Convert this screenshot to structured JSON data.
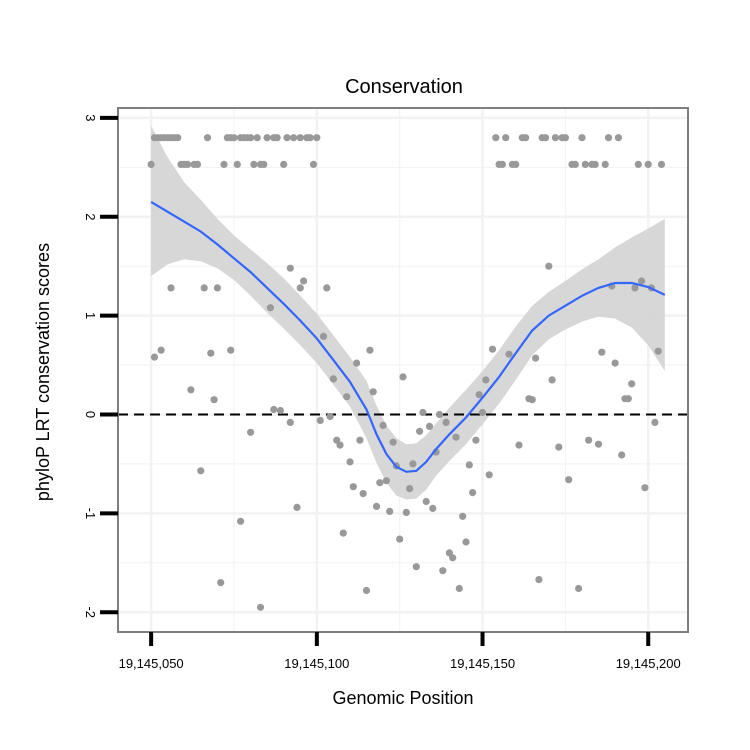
{
  "chart_data": {
    "type": "scatter",
    "title": "Conservation",
    "xlabel": "Genomic Position",
    "ylabel": "phyloP LRT conservation scores",
    "xlim": [
      19145040,
      19145212
    ],
    "ylim": [
      -2.2,
      3.1
    ],
    "x_ticks": [
      19145050,
      19145100,
      19145150,
      19145200
    ],
    "x_tick_labels": [
      "19,145,050",
      "19,145,100",
      "19,145,150",
      "19,145,200"
    ],
    "y_ticks": [
      -2,
      -1,
      0,
      1,
      2,
      3
    ],
    "y_tick_labels": [
      "-2",
      "-1",
      "0",
      "1",
      "2",
      "3"
    ],
    "grid": true,
    "reference_line": {
      "y": 0,
      "style": "dashed"
    },
    "colors": {
      "points": "#999999",
      "smooth": "#3366ff",
      "band": "#d3d3d3",
      "panel_border": "#7f7f7f",
      "grid": "#f2f2f2",
      "refline": "#000000"
    },
    "series": [
      {
        "kind": "points",
        "points": [
          [
            19145050,
            2.53
          ],
          [
            19145051,
            0.58
          ],
          [
            19145051,
            2.8
          ],
          [
            19145052,
            2.8
          ],
          [
            19145053,
            0.65
          ],
          [
            19145053,
            2.8
          ],
          [
            19145054,
            2.8
          ],
          [
            19145055,
            2.8
          ],
          [
            19145056,
            1.28
          ],
          [
            19145056,
            2.8
          ],
          [
            19145057,
            2.8
          ],
          [
            19145058,
            2.8
          ],
          [
            19145059,
            2.53
          ],
          [
            19145060,
            2.53
          ],
          [
            19145061,
            2.53
          ],
          [
            19145062,
            0.25
          ],
          [
            19145063,
            2.53
          ],
          [
            19145064,
            2.53
          ],
          [
            19145065,
            -0.57
          ],
          [
            19145066,
            1.28
          ],
          [
            19145067,
            2.8
          ],
          [
            19145068,
            0.62
          ],
          [
            19145069,
            0.15
          ],
          [
            19145070,
            1.28
          ],
          [
            19145071,
            -1.7
          ],
          [
            19145072,
            2.53
          ],
          [
            19145073,
            2.8
          ],
          [
            19145074,
            0.65
          ],
          [
            19145074,
            2.8
          ],
          [
            19145075,
            2.8
          ],
          [
            19145076,
            2.53
          ],
          [
            19145077,
            -1.08
          ],
          [
            19145077,
            2.8
          ],
          [
            19145078,
            2.8
          ],
          [
            19145079,
            2.8
          ],
          [
            19145080,
            -0.18
          ],
          [
            19145080,
            2.8
          ],
          [
            19145081,
            2.53
          ],
          [
            19145082,
            2.8
          ],
          [
            19145083,
            -1.95
          ],
          [
            19145083,
            2.53
          ],
          [
            19145084,
            2.53
          ],
          [
            19145085,
            2.8
          ],
          [
            19145086,
            1.08
          ],
          [
            19145087,
            0.05
          ],
          [
            19145087,
            2.8
          ],
          [
            19145088,
            2.8
          ],
          [
            19145089,
            0.04
          ],
          [
            19145090,
            2.53
          ],
          [
            19145091,
            2.8
          ],
          [
            19145092,
            -0.08
          ],
          [
            19145092,
            1.48
          ],
          [
            19145093,
            2.8
          ],
          [
            19145094,
            -0.94
          ],
          [
            19145095,
            1.28
          ],
          [
            19145095,
            2.8
          ],
          [
            19145096,
            1.35
          ],
          [
            19145097,
            2.8
          ],
          [
            19145098,
            2.8
          ],
          [
            19145099,
            2.53
          ],
          [
            19145100,
            2.8
          ],
          [
            19145101,
            -0.06
          ],
          [
            19145102,
            0.79
          ],
          [
            19145103,
            1.28
          ],
          [
            19145104,
            -0.02
          ],
          [
            19145105,
            0.36
          ],
          [
            19145106,
            -0.26
          ],
          [
            19145107,
            -0.31
          ],
          [
            19145108,
            -1.2
          ],
          [
            19145109,
            0.18
          ],
          [
            19145110,
            -0.48
          ],
          [
            19145111,
            -0.73
          ],
          [
            19145112,
            0.52
          ],
          [
            19145113,
            -0.26
          ],
          [
            19145114,
            -0.8
          ],
          [
            19145115,
            -1.78
          ],
          [
            19145116,
            0.65
          ],
          [
            19145117,
            0.23
          ],
          [
            19145118,
            -0.93
          ],
          [
            19145119,
            -0.69
          ],
          [
            19145120,
            -0.11
          ],
          [
            19145121,
            -0.67
          ],
          [
            19145122,
            -0.98
          ],
          [
            19145123,
            -0.28
          ],
          [
            19145124,
            -0.52
          ],
          [
            19145125,
            -1.26
          ],
          [
            19145126,
            0.38
          ],
          [
            19145127,
            -0.99
          ],
          [
            19145128,
            -0.75
          ],
          [
            19145129,
            -0.5
          ],
          [
            19145130,
            -1.54
          ],
          [
            19145131,
            -0.17
          ],
          [
            19145132,
            0.02
          ],
          [
            19145133,
            -0.88
          ],
          [
            19145134,
            -0.12
          ],
          [
            19145135,
            -0.95
          ],
          [
            19145136,
            -0.38
          ],
          [
            19145137,
            0.0
          ],
          [
            19145138,
            -1.58
          ],
          [
            19145139,
            -0.08
          ],
          [
            19145140,
            -1.4
          ],
          [
            19145141,
            -1.45
          ],
          [
            19145142,
            -0.23
          ],
          [
            19145143,
            -1.76
          ],
          [
            19145144,
            -1.03
          ],
          [
            19145145,
            -1.29
          ],
          [
            19145146,
            -0.51
          ],
          [
            19145147,
            -0.79
          ],
          [
            19145148,
            -0.26
          ],
          [
            19145149,
            0.2
          ],
          [
            19145150,
            0.02
          ],
          [
            19145151,
            0.35
          ],
          [
            19145152,
            -0.61
          ],
          [
            19145153,
            0.66
          ],
          [
            19145154,
            2.8
          ],
          [
            19145155,
            2.53
          ],
          [
            19145156,
            2.53
          ],
          [
            19145157,
            2.8
          ],
          [
            19145158,
            0.61
          ],
          [
            19145159,
            2.53
          ],
          [
            19145160,
            2.53
          ],
          [
            19145161,
            -0.31
          ],
          [
            19145162,
            2.8
          ],
          [
            19145163,
            2.8
          ],
          [
            19145164,
            0.16
          ],
          [
            19145165,
            0.15
          ],
          [
            19145166,
            0.57
          ],
          [
            19145167,
            -1.67
          ],
          [
            19145168,
            2.8
          ],
          [
            19145169,
            2.8
          ],
          [
            19145170,
            1.5
          ],
          [
            19145171,
            0.35
          ],
          [
            19145172,
            2.8
          ],
          [
            19145173,
            -0.33
          ],
          [
            19145174,
            2.8
          ],
          [
            19145175,
            2.8
          ],
          [
            19145176,
            -0.66
          ],
          [
            19145177,
            2.53
          ],
          [
            19145178,
            2.53
          ],
          [
            19145179,
            -1.76
          ],
          [
            19145180,
            2.8
          ],
          [
            19145181,
            2.53
          ],
          [
            19145182,
            -0.26
          ],
          [
            19145183,
            2.53
          ],
          [
            19145184,
            2.53
          ],
          [
            19145185,
            -0.3
          ],
          [
            19145186,
            0.63
          ],
          [
            19145187,
            2.53
          ],
          [
            19145188,
            2.8
          ],
          [
            19145189,
            1.3
          ],
          [
            19145190,
            0.52
          ],
          [
            19145191,
            2.8
          ],
          [
            19145192,
            -0.41
          ],
          [
            19145193,
            0.16
          ],
          [
            19145194,
            0.16
          ],
          [
            19145195,
            0.31
          ],
          [
            19145196,
            1.28
          ],
          [
            19145197,
            2.53
          ],
          [
            19145198,
            1.35
          ],
          [
            19145199,
            -0.74
          ],
          [
            19145200,
            2.53
          ],
          [
            19145201,
            1.28
          ],
          [
            19145202,
            -0.08
          ],
          [
            19145203,
            0.64
          ],
          [
            19145204,
            2.53
          ]
        ]
      },
      {
        "kind": "smooth",
        "x": [
          19145050,
          19145055,
          19145060,
          19145065,
          19145070,
          19145075,
          19145080,
          19145085,
          19145090,
          19145095,
          19145100,
          19145105,
          19145110,
          19145115,
          19145118,
          19145121,
          19145124,
          19145127,
          19145130,
          19145133,
          19145136,
          19145140,
          19145145,
          19145150,
          19145155,
          19145160,
          19145165,
          19145170,
          19145175,
          19145180,
          19145185,
          19145190,
          19145195,
          19145200,
          19145205
        ],
        "y": [
          2.15,
          2.05,
          1.95,
          1.85,
          1.72,
          1.58,
          1.44,
          1.28,
          1.12,
          0.95,
          0.77,
          0.55,
          0.33,
          0.05,
          -0.2,
          -0.4,
          -0.53,
          -0.58,
          -0.57,
          -0.48,
          -0.35,
          -0.2,
          -0.03,
          0.17,
          0.38,
          0.62,
          0.85,
          1.0,
          1.1,
          1.2,
          1.28,
          1.33,
          1.33,
          1.29,
          1.21
        ],
        "lower": [
          1.4,
          1.52,
          1.57,
          1.55,
          1.48,
          1.36,
          1.2,
          1.03,
          0.87,
          0.7,
          0.52,
          0.3,
          0.08,
          -0.24,
          -0.49,
          -0.69,
          -0.82,
          -0.86,
          -0.85,
          -0.76,
          -0.62,
          -0.47,
          -0.3,
          -0.1,
          0.11,
          0.35,
          0.6,
          0.76,
          0.86,
          0.94,
          0.99,
          0.97,
          0.88,
          0.7,
          0.44
        ]
      }
    ],
    "upper_band": [
      2.92,
      2.6,
      2.35,
      2.17,
      1.98,
      1.81,
      1.67,
      1.53,
      1.38,
      1.2,
      1.02,
      0.8,
      0.58,
      0.34,
      0.09,
      -0.11,
      -0.24,
      -0.3,
      -0.29,
      -0.21,
      -0.09,
      0.07,
      0.25,
      0.44,
      0.65,
      0.89,
      1.1,
      1.24,
      1.35,
      1.47,
      1.57,
      1.69,
      1.79,
      1.88,
      1.98
    ]
  }
}
